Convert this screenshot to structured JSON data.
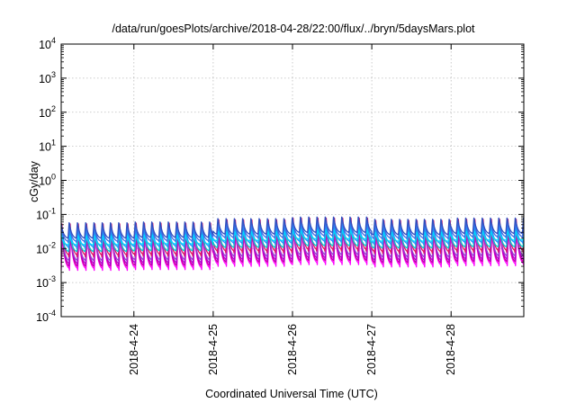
{
  "chart_data": {
    "type": "line",
    "title": "/data/run/goesPlots/archive/2018-04-28/22:00/flux/../bryn/5daysMars.plot",
    "xlabel": "Coordinated Universal Time (UTC)",
    "ylabel": "cGy/day",
    "y_scale": "log",
    "ylim": [
      0.0001,
      10000
    ],
    "y_ticks": [
      {
        "value": 10000,
        "base": "10",
        "exp": "4"
      },
      {
        "value": 1000,
        "base": "10",
        "exp": "3"
      },
      {
        "value": 100,
        "base": "10",
        "exp": "2"
      },
      {
        "value": 10,
        "base": "10",
        "exp": "1"
      },
      {
        "value": 1,
        "base": "10",
        "exp": "0"
      },
      {
        "value": 0.1,
        "base": "10",
        "exp": "-1"
      },
      {
        "value": 0.01,
        "base": "10",
        "exp": "-2"
      },
      {
        "value": 0.001,
        "base": "10",
        "exp": "-3"
      },
      {
        "value": 0.0001,
        "base": "10",
        "exp": "-4"
      }
    ],
    "x_range": [
      "2018-04-23 02:00",
      "2018-04-28 22:00"
    ],
    "x_ticks": [
      {
        "value": "2018-04-24 00:00",
        "label": "2018-4-24"
      },
      {
        "value": "2018-04-25 00:00",
        "label": "2018-4-25"
      },
      {
        "value": "2018-04-26 00:00",
        "label": "2018-4-26"
      },
      {
        "value": "2018-04-27 00:00",
        "label": "2018-4-27"
      },
      {
        "value": "2018-04-28 00:00",
        "label": "2018-4-28"
      }
    ],
    "grid": true,
    "legend": "none",
    "oscillation_period_hours": 2.5,
    "series": [
      {
        "color": "#ff00ff",
        "peak": 0.028,
        "trough": 0.0024
      },
      {
        "color": "#cc0099",
        "peak": 0.032,
        "trough": 0.0028
      },
      {
        "color": "#b000d0",
        "peak": 0.036,
        "trough": 0.0034
      },
      {
        "color": "#9a3fd0",
        "peak": 0.04,
        "trough": 0.0042
      },
      {
        "color": "#e01060",
        "peak": 0.06,
        "trough": 0.006
      },
      {
        "color": "#00ccd0",
        "peak": 0.033,
        "trough": 0.008
      },
      {
        "color": "#1e90ff",
        "peak": 0.045,
        "trough": 0.011
      },
      {
        "color": "#00d8ff",
        "peak": 0.026,
        "trough": 0.013
      },
      {
        "color": "#4169e1",
        "peak": 0.055,
        "trough": 0.016
      },
      {
        "color": "#2f4fbf",
        "peak": 0.065,
        "trough": 0.02
      }
    ],
    "daily_amplitude_factors": [
      {
        "date": "2018-04-23",
        "factor": 0.95
      },
      {
        "date": "2018-04-24",
        "factor": 1.0
      },
      {
        "date": "2018-04-25",
        "factor": 1.25
      },
      {
        "date": "2018-04-26",
        "factor": 1.4
      },
      {
        "date": "2018-04-27",
        "factor": 1.2
      },
      {
        "date": "2018-04-28",
        "factor": 1.3
      }
    ]
  }
}
